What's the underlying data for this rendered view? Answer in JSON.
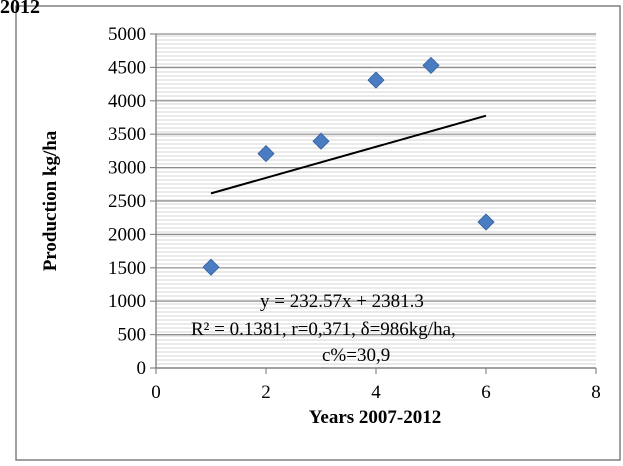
{
  "header": {
    "top_cut_label": "2012"
  },
  "chart_data": {
    "type": "scatter",
    "title": "",
    "xlabel": "Years 2007-2012",
    "ylabel": "Production kg/ha",
    "xlim": [
      0,
      8
    ],
    "ylim": [
      0,
      5000
    ],
    "x_ticks": [
      0,
      2,
      4,
      6,
      8
    ],
    "y_ticks": [
      0,
      500,
      1000,
      1500,
      2000,
      2500,
      3000,
      3500,
      4000,
      4500,
      5000
    ],
    "x_tick_labels": [
      "0",
      "2",
      "4",
      "6",
      "8"
    ],
    "y_tick_labels": [
      "0",
      "500",
      "1000",
      "1500",
      "2000",
      "2500",
      "3000",
      "3500",
      "4000",
      "4500",
      "5000"
    ],
    "grid": true,
    "legend": "none",
    "series": [
      {
        "x": [
          1,
          2,
          3,
          4,
          5,
          6
        ],
        "y": [
          1510,
          3210,
          3395,
          4310,
          4530,
          2185
        ],
        "marker": "diamond",
        "color": "#4a7cc1"
      }
    ],
    "trendline": {
      "slope": 232.57,
      "intercept": 2381.3,
      "x_range": [
        1,
        6
      ],
      "color": "#000000"
    },
    "annotations": [
      "y = 232.57x + 2381.3",
      "R² = 0.1381, r=0,371, δ=986kg/ha,",
      "c%=30,9"
    ]
  }
}
